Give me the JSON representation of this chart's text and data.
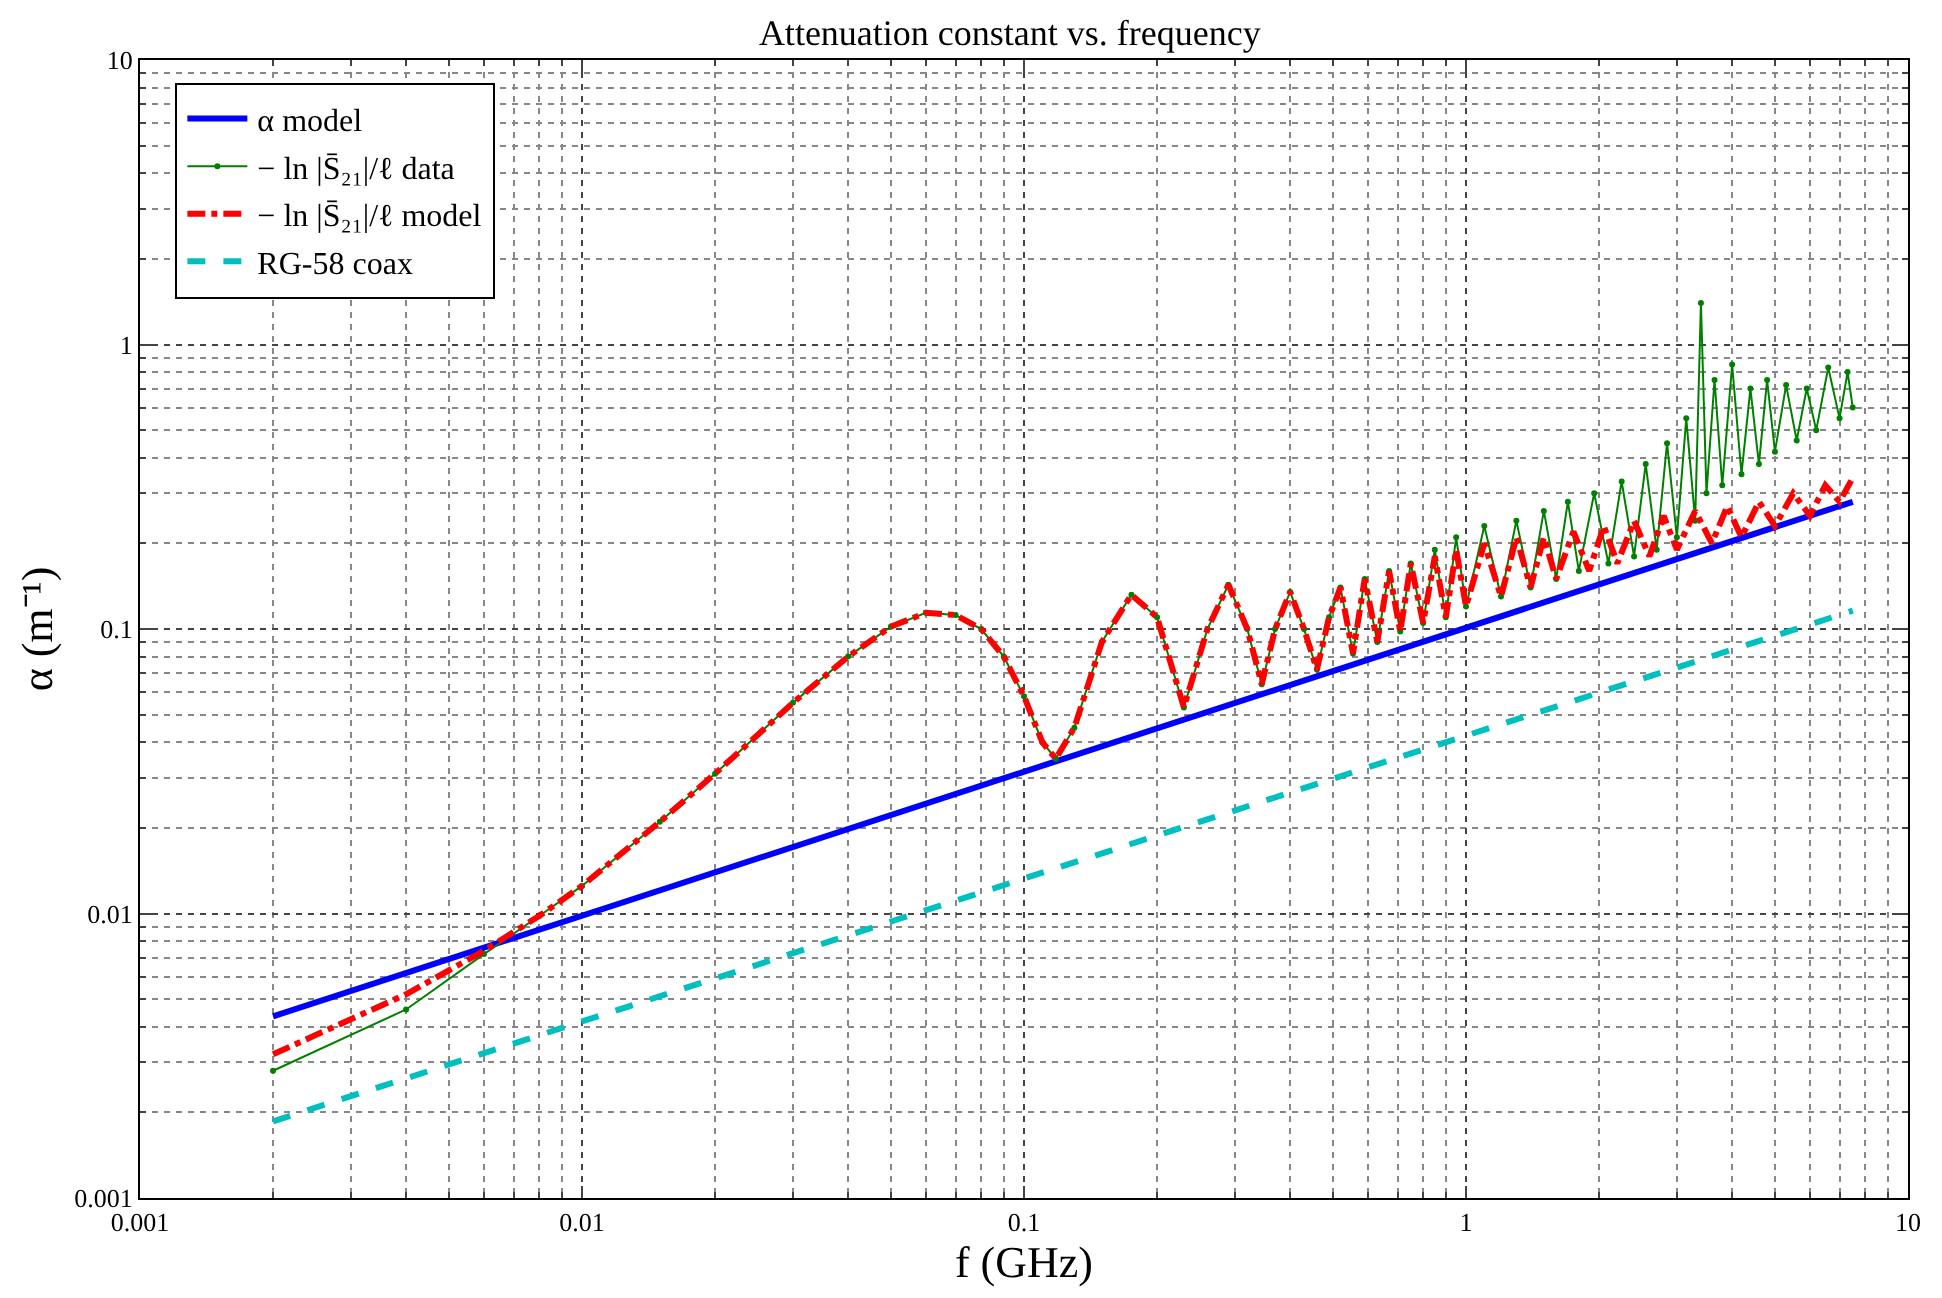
{
  "chart_data": {
    "type": "line",
    "title": "Attenuation constant vs. frequency",
    "xlabel": "f (GHz)",
    "ylabel": "α (m⁻¹)",
    "log": "xy",
    "xlim": [
      0.001,
      10
    ],
    "ylim": [
      0.001,
      10
    ],
    "xticks": [
      0.001,
      0.01,
      0.1,
      1,
      10
    ],
    "yticks": [
      0.001,
      0.01,
      0.1,
      1,
      10
    ],
    "grid": true,
    "legend": "top left",
    "series": [
      {
        "name": "α model",
        "color": "#0000ff",
        "line_style": "solid",
        "marker": "none",
        "x": [
          0.002,
          7.5
        ],
        "values": [
          0.00435,
          0.28
        ]
      },
      {
        "name": "− ln |S̄₂₁|/ℓ data",
        "color": "#008000",
        "line_style": "solid",
        "marker": "circle",
        "x": [
          0.002,
          0.004,
          0.006,
          0.008,
          0.01,
          0.015,
          0.02,
          0.03,
          0.04,
          0.05,
          0.06,
          0.07,
          0.08,
          0.09,
          0.1,
          0.11,
          0.118,
          0.13,
          0.15,
          0.175,
          0.2,
          0.23,
          0.26,
          0.29,
          0.32,
          0.345,
          0.37,
          0.4,
          0.43,
          0.46,
          0.49,
          0.52,
          0.555,
          0.59,
          0.63,
          0.67,
          0.71,
          0.75,
          0.8,
          0.85,
          0.9,
          0.95,
          1.0,
          1.1,
          1.2,
          1.3,
          1.4,
          1.5,
          1.6,
          1.7,
          1.8,
          1.95,
          2.1,
          2.25,
          2.4,
          2.55,
          2.7,
          2.85,
          3.0,
          3.15,
          3.3,
          3.4,
          3.5,
          3.65,
          3.8,
          4.0,
          4.2,
          4.4,
          4.6,
          4.8,
          5.0,
          5.3,
          5.6,
          5.9,
          6.2,
          6.6,
          7.0,
          7.3,
          7.5
        ],
        "values": [
          0.0028,
          0.0046,
          0.0072,
          0.0098,
          0.0125,
          0.021,
          0.031,
          0.055,
          0.08,
          0.102,
          0.114,
          0.112,
          0.1,
          0.08,
          0.058,
          0.04,
          0.035,
          0.045,
          0.09,
          0.132,
          0.11,
          0.053,
          0.1,
          0.143,
          0.1,
          0.064,
          0.1,
          0.135,
          0.1,
          0.072,
          0.11,
          0.14,
          0.082,
          0.15,
          0.09,
          0.16,
          0.098,
          0.17,
          0.105,
          0.19,
          0.11,
          0.21,
          0.12,
          0.23,
          0.13,
          0.24,
          0.14,
          0.26,
          0.15,
          0.28,
          0.16,
          0.3,
          0.17,
          0.33,
          0.18,
          0.38,
          0.19,
          0.45,
          0.21,
          0.55,
          0.24,
          1.4,
          0.3,
          0.75,
          0.32,
          0.85,
          0.35,
          0.7,
          0.38,
          0.75,
          0.42,
          0.72,
          0.46,
          0.7,
          0.5,
          0.83,
          0.55,
          0.8,
          0.6
        ]
      },
      {
        "name": "− ln |S̄₂₁|/ℓ model",
        "color": "#ff0000",
        "line_style": "dashdot",
        "marker": "none",
        "x": [
          0.002,
          0.004,
          0.006,
          0.008,
          0.01,
          0.015,
          0.02,
          0.03,
          0.04,
          0.05,
          0.06,
          0.07,
          0.08,
          0.09,
          0.1,
          0.11,
          0.118,
          0.13,
          0.15,
          0.175,
          0.2,
          0.23,
          0.26,
          0.29,
          0.32,
          0.345,
          0.37,
          0.4,
          0.43,
          0.46,
          0.49,
          0.52,
          0.555,
          0.59,
          0.63,
          0.67,
          0.71,
          0.75,
          0.8,
          0.85,
          0.9,
          0.95,
          1.0,
          1.1,
          1.2,
          1.3,
          1.4,
          1.5,
          1.6,
          1.75,
          1.9,
          2.05,
          2.2,
          2.4,
          2.6,
          2.8,
          3.0,
          3.3,
          3.6,
          3.9,
          4.2,
          4.6,
          5.0,
          5.5,
          6.0,
          6.5,
          7.0,
          7.5
        ],
        "values": [
          0.0032,
          0.0052,
          0.0074,
          0.0098,
          0.0125,
          0.021,
          0.031,
          0.055,
          0.08,
          0.102,
          0.114,
          0.112,
          0.1,
          0.08,
          0.058,
          0.04,
          0.035,
          0.045,
          0.09,
          0.132,
          0.11,
          0.053,
          0.1,
          0.143,
          0.1,
          0.064,
          0.1,
          0.135,
          0.1,
          0.072,
          0.11,
          0.14,
          0.082,
          0.15,
          0.09,
          0.16,
          0.098,
          0.17,
          0.105,
          0.18,
          0.11,
          0.19,
          0.12,
          0.2,
          0.13,
          0.21,
          0.14,
          0.21,
          0.15,
          0.22,
          0.16,
          0.23,
          0.17,
          0.24,
          0.18,
          0.25,
          0.19,
          0.26,
          0.2,
          0.27,
          0.21,
          0.28,
          0.23,
          0.3,
          0.25,
          0.32,
          0.28,
          0.34
        ]
      },
      {
        "name": "RG-58 coax",
        "color": "#00bfbf",
        "line_style": "dashed",
        "marker": "none",
        "x": [
          0.002,
          7.5
        ],
        "values": [
          0.00186,
          0.116
        ]
      }
    ]
  }
}
